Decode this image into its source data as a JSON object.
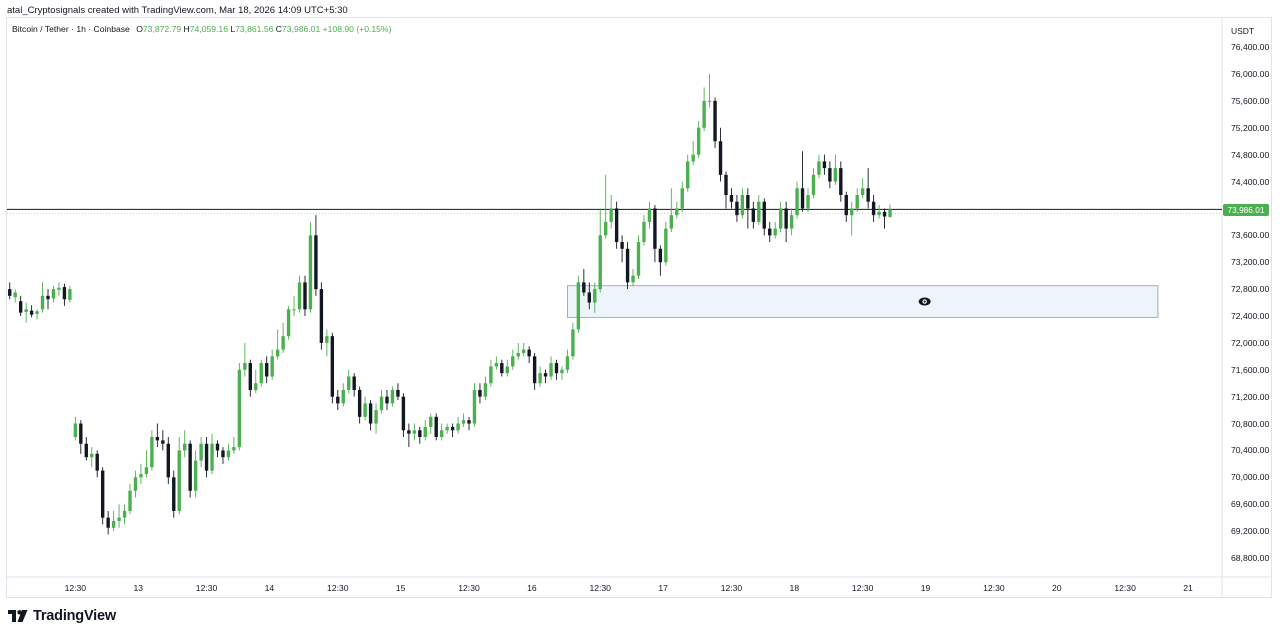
{
  "header": {
    "caption": "atal_Cryptosignals created with TradingView.com, Mar 18, 2026 14:09 UTC+5:30"
  },
  "legend": {
    "symbol": "Bitcoin / Tether · 1h · Coinbase",
    "open_label": "O",
    "open": "73,872.79",
    "high_label": "H",
    "high": "74,059.16",
    "low_label": "L",
    "low": "73,861.56",
    "close_label": "C",
    "close": "73,986.01",
    "change": "+108.90 (+0.15%)"
  },
  "price_axis": {
    "unit": "USDT",
    "last_price": "73,986.01"
  },
  "brand": {
    "name": "TradingView"
  },
  "colors": {
    "up": "#4caf50",
    "down": "#131722",
    "zone_fill": "#eef4fb",
    "zone_border": "#8a9bb0",
    "grid_border": "#e0e3eb"
  },
  "icons": {
    "zone_marker": "eye-icon",
    "brand_logo": "tradingview-logo-icon"
  },
  "chart_data": {
    "type": "candlestick",
    "title": "",
    "xlabel": "",
    "ylabel": "",
    "ylim": [
      68600,
      76600
    ],
    "y_ticks": [
      "76,400.00",
      "76,000.00",
      "75,600.00",
      "75,200.00",
      "74,800.00",
      "74,400.00",
      "74,000.00",
      "73,600.00",
      "73,200.00",
      "72,800.00",
      "72,400.00",
      "72,000.00",
      "71,600.00",
      "71,200.00",
      "70,800.00",
      "70,400.00",
      "70,000.00",
      "69,600.00",
      "69,200.00",
      "68,800.00"
    ],
    "y_tick_values": [
      76400,
      76000,
      75600,
      75200,
      74800,
      74400,
      74000,
      73600,
      73200,
      72800,
      72400,
      72000,
      71600,
      71200,
      70800,
      70400,
      70000,
      69600,
      69200,
      68800
    ],
    "x_ticks": [
      "12:30",
      "13",
      "12:30",
      "14",
      "12:30",
      "15",
      "12:30",
      "16",
      "12:30",
      "17",
      "12:30",
      "18",
      "12:30",
      "19",
      "12:30",
      "20",
      "12:30",
      "21"
    ],
    "x_tick_hours": [
      12.5,
      24,
      36.5,
      48,
      60.5,
      72,
      84.5,
      96,
      108.5,
      120,
      132.5,
      144,
      156.5,
      168,
      180.5,
      192,
      204.5,
      216
    ],
    "x_range_hours": [
      0,
      220
    ],
    "last_price": 73986.01,
    "zone": {
      "price_top": 72850,
      "price_bottom": 72380,
      "hour_start": 102.5,
      "hour_end": 210.5
    },
    "candles": [
      [
        72800,
        72700,
        72900,
        72650
      ],
      [
        72680,
        72750,
        72800,
        72600
      ],
      [
        72620,
        72450,
        72700,
        72400
      ],
      [
        72460,
        72500,
        72600,
        72300
      ],
      [
        72480,
        72420,
        72560,
        72380
      ],
      [
        72430,
        72470,
        72500,
        72350
      ],
      [
        72500,
        72700,
        72900,
        72450
      ],
      [
        72700,
        72650,
        72800,
        72500
      ],
      [
        72660,
        72800,
        72850,
        72600
      ],
      [
        72790,
        72820,
        72900,
        72700
      ],
      [
        72830,
        72650,
        72880,
        72550
      ],
      [
        72640,
        72800,
        72850,
        72600
      ],
      [
        70600,
        70800,
        70900,
        70550
      ],
      [
        70800,
        70500,
        70850,
        70350
      ],
      [
        70500,
        70300,
        70600,
        70250
      ],
      [
        70300,
        70350,
        70450,
        70150
      ],
      [
        70350,
        70100,
        70400,
        70000
      ],
      [
        70100,
        69400,
        70150,
        69300
      ],
      [
        69400,
        69250,
        69500,
        69150
      ],
      [
        69250,
        69350,
        69500,
        69200
      ],
      [
        69350,
        69400,
        69600,
        69250
      ],
      [
        69400,
        69500,
        69600,
        69300
      ],
      [
        69500,
        69800,
        69900,
        69450
      ],
      [
        69800,
        70000,
        70100,
        69700
      ],
      [
        70000,
        70050,
        70200,
        69900
      ],
      [
        70050,
        70150,
        70400,
        70000
      ],
      [
        70150,
        70600,
        70700,
        70100
      ],
      [
        70600,
        70550,
        70800,
        70450
      ],
      [
        70550,
        70500,
        70700,
        70400
      ],
      [
        70500,
        70000,
        70600,
        69900
      ],
      [
        70000,
        69500,
        70100,
        69400
      ],
      [
        69500,
        70400,
        70600,
        69450
      ],
      [
        70400,
        70500,
        70700,
        70300
      ],
      [
        70500,
        69800,
        70550,
        69700
      ],
      [
        69800,
        70250,
        70400,
        69700
      ],
      [
        70250,
        70500,
        70600,
        70150
      ],
      [
        70500,
        70100,
        70600,
        70000
      ],
      [
        70100,
        70500,
        70650,
        70050
      ],
      [
        70500,
        70400,
        70550,
        70300
      ],
      [
        70400,
        70300,
        70450,
        70200
      ],
      [
        70300,
        70400,
        70500,
        70250
      ],
      [
        70400,
        70450,
        70600,
        70350
      ],
      [
        70450,
        71600,
        71700,
        70400
      ],
      [
        71600,
        71700,
        72000,
        71500
      ],
      [
        71700,
        71300,
        71750,
        71200
      ],
      [
        71300,
        71400,
        71600,
        71250
      ],
      [
        71400,
        71700,
        71750,
        71350
      ],
      [
        71700,
        71500,
        71800,
        71400
      ],
      [
        71500,
        71800,
        71900,
        71450
      ],
      [
        71800,
        71900,
        72200,
        71750
      ],
      [
        71900,
        72100,
        72300,
        71850
      ],
      [
        72100,
        72500,
        72550,
        72050
      ],
      [
        72500,
        72500,
        72700,
        72400
      ],
      [
        72500,
        72900,
        73000,
        72450
      ],
      [
        72900,
        72500,
        73000,
        72400
      ],
      [
        72500,
        73600,
        73800,
        72450
      ],
      [
        73600,
        72800,
        73900,
        72700
      ],
      [
        72800,
        72000,
        72900,
        71900
      ],
      [
        72000,
        72100,
        72200,
        71800
      ],
      [
        72100,
        71200,
        72150,
        71100
      ],
      [
        71200,
        71100,
        71300,
        71000
      ],
      [
        71100,
        71300,
        71400,
        71050
      ],
      [
        71300,
        71500,
        71600,
        71250
      ],
      [
        71500,
        71300,
        71550,
        71200
      ],
      [
        71300,
        70900,
        71350,
        70800
      ],
      [
        70900,
        71100,
        71200,
        70850
      ],
      [
        71100,
        70800,
        71150,
        70700
      ],
      [
        70800,
        71000,
        71100,
        70650
      ],
      [
        71000,
        71200,
        71300,
        70950
      ],
      [
        71200,
        71100,
        71300,
        71000
      ],
      [
        71100,
        71300,
        71350,
        71050
      ],
      [
        71300,
        71200,
        71400,
        71150
      ],
      [
        71200,
        70700,
        71250,
        70600
      ],
      [
        70700,
        70650,
        70800,
        70450
      ],
      [
        70650,
        70700,
        70800,
        70550
      ],
      [
        70700,
        70600,
        70750,
        70500
      ],
      [
        70600,
        70750,
        70850,
        70550
      ],
      [
        70750,
        70900,
        70950,
        70650
      ],
      [
        70900,
        70600,
        70950,
        70550
      ],
      [
        70600,
        70700,
        70800,
        70550
      ],
      [
        70700,
        70750,
        70800,
        70650
      ],
      [
        70750,
        70700,
        70800,
        70600
      ],
      [
        70700,
        70800,
        70900,
        70650
      ],
      [
        70800,
        70850,
        70950,
        70750
      ],
      [
        70850,
        70800,
        70900,
        70700
      ],
      [
        70800,
        71300,
        71400,
        70750
      ],
      [
        71300,
        71200,
        71400,
        71100
      ],
      [
        71200,
        71400,
        71500,
        71150
      ],
      [
        71400,
        71650,
        71750,
        71350
      ],
      [
        71650,
        71700,
        71800,
        71600
      ],
      [
        71700,
        71550,
        71750,
        71500
      ],
      [
        71550,
        71650,
        71750,
        71500
      ],
      [
        71650,
        71800,
        71900,
        71600
      ],
      [
        71800,
        71850,
        72000,
        71750
      ],
      [
        71850,
        71900,
        72000,
        71800
      ],
      [
        71900,
        71800,
        71950,
        71700
      ],
      [
        71800,
        71400,
        71850,
        71300
      ],
      [
        71400,
        71550,
        71650,
        71350
      ],
      [
        71550,
        71500,
        71600,
        71400
      ],
      [
        71500,
        71700,
        71800,
        71450
      ],
      [
        71700,
        71550,
        71750,
        71450
      ],
      [
        71550,
        71600,
        71650,
        71450
      ],
      [
        71600,
        71800,
        71900,
        71550
      ],
      [
        71800,
        72200,
        72300,
        71750
      ],
      [
        72200,
        72900,
        73000,
        72150
      ],
      [
        72900,
        72750,
        73100,
        72700
      ],
      [
        72750,
        72600,
        72900,
        72500
      ],
      [
        72600,
        72800,
        72900,
        72450
      ],
      [
        72800,
        73600,
        74000,
        72750
      ],
      [
        73600,
        73800,
        74500,
        73550
      ],
      [
        73800,
        74000,
        74200,
        73700
      ],
      [
        74000,
        73500,
        74100,
        73400
      ],
      [
        73500,
        73400,
        73600,
        73200
      ],
      [
        73400,
        72900,
        73500,
        72800
      ],
      [
        72900,
        73000,
        73100,
        72850
      ],
      [
        73000,
        73500,
        73600,
        72950
      ],
      [
        73500,
        73800,
        73900,
        73450
      ],
      [
        73800,
        74000,
        74100,
        73700
      ],
      [
        74000,
        73400,
        74050,
        73200
      ],
      [
        73400,
        73200,
        73450,
        73000
      ],
      [
        73200,
        73700,
        73800,
        73150
      ],
      [
        73700,
        73900,
        74300,
        73650
      ],
      [
        73900,
        74000,
        74100,
        73850
      ],
      [
        74000,
        74300,
        74400,
        73950
      ],
      [
        74300,
        74700,
        74800,
        74250
      ],
      [
        74700,
        74800,
        75000,
        74650
      ],
      [
        74800,
        75200,
        75300,
        74750
      ],
      [
        75200,
        75600,
        75800,
        75150
      ],
      [
        75600,
        75600,
        76000,
        75500
      ],
      [
        75600,
        75000,
        75650,
        74900
      ],
      [
        75000,
        74500,
        75200,
        74400
      ],
      [
        74500,
        74200,
        74550,
        74000
      ],
      [
        74200,
        74100,
        74300,
        74000
      ],
      [
        74100,
        73900,
        74200,
        73800
      ],
      [
        73900,
        74200,
        74300,
        73850
      ],
      [
        74200,
        74000,
        74300,
        73700
      ],
      [
        74000,
        73800,
        74100,
        73700
      ],
      [
        73800,
        74100,
        74200,
        73750
      ],
      [
        74100,
        73700,
        74150,
        73600
      ],
      [
        73700,
        73600,
        73800,
        73500
      ],
      [
        73600,
        73700,
        73800,
        73550
      ],
      [
        73700,
        74000,
        74100,
        73650
      ],
      [
        74000,
        73700,
        74100,
        73500
      ],
      [
        73700,
        73900,
        74000,
        73600
      ],
      [
        73900,
        74300,
        74400,
        73850
      ],
      [
        74300,
        74000,
        74850,
        73950
      ],
      [
        74000,
        74200,
        74300,
        73950
      ],
      [
        74200,
        74500,
        74600,
        74150
      ],
      [
        74500,
        74700,
        74800,
        74450
      ],
      [
        74700,
        74600,
        74800,
        74500
      ],
      [
        74600,
        74400,
        74700,
        74300
      ],
      [
        74400,
        74600,
        74800,
        74350
      ],
      [
        74600,
        74200,
        74700,
        74100
      ],
      [
        74200,
        73900,
        74250,
        73800
      ],
      [
        73900,
        74000,
        74100,
        73600
      ],
      [
        74000,
        74200,
        74300,
        73950
      ],
      [
        74200,
        74300,
        74450,
        74150
      ],
      [
        74300,
        74100,
        74600,
        74000
      ],
      [
        74100,
        73900,
        74200,
        73800
      ],
      [
        73900,
        73950,
        74050,
        73850
      ],
      [
        73950,
        73880,
        74000,
        73700
      ],
      [
        73872.79,
        73986.01,
        74059.16,
        73861.56
      ]
    ]
  }
}
